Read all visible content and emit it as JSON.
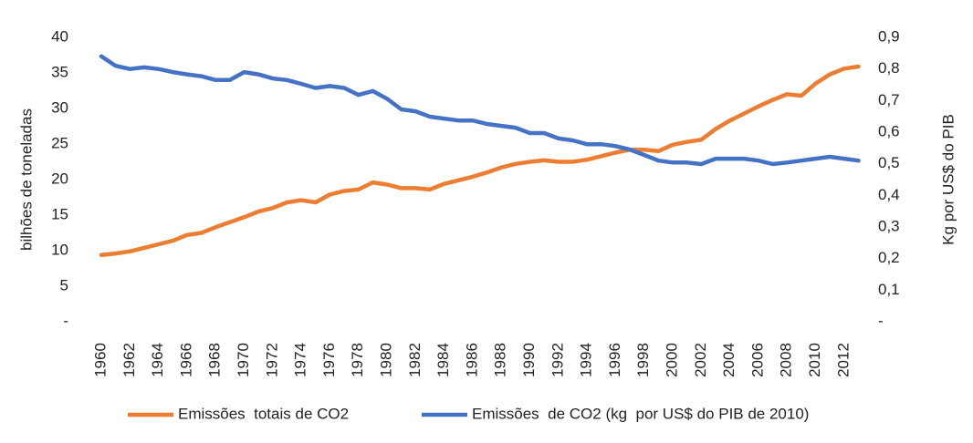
{
  "chart_data": {
    "type": "line",
    "ylabel": "bilhões de toneladas",
    "y2label": "Kg por US$ do PIB",
    "categories": [
      "1960",
      null,
      "1962",
      null,
      "1964",
      null,
      "1966",
      null,
      "1968",
      null,
      "1970",
      null,
      "1972",
      null,
      "1974",
      null,
      "1976",
      null,
      "1978",
      null,
      "1980",
      null,
      "1982",
      null,
      "1984",
      null,
      "1986",
      null,
      "1988",
      null,
      "1990",
      null,
      "1992",
      null,
      "1994",
      null,
      "1996",
      null,
      "1998",
      null,
      "2000",
      null,
      "2002",
      null,
      "2004",
      null,
      "2006",
      null,
      "2008",
      null,
      "2010",
      null,
      "2012",
      null
    ],
    "series": [
      {
        "name": "Emissões  totais de CO2",
        "color": "#ed7d31",
        "axis": "y",
        "values": [
          9.4,
          9.6,
          9.9,
          10.4,
          10.9,
          11.4,
          12.2,
          12.5,
          13.3,
          14.0,
          14.7,
          15.5,
          16.0,
          16.8,
          17.1,
          16.8,
          17.9,
          18.4,
          18.6,
          19.6,
          19.3,
          18.8,
          18.8,
          18.6,
          19.4,
          19.9,
          20.4,
          21.0,
          21.7,
          22.2,
          22.5,
          22.7,
          22.5,
          22.5,
          22.8,
          23.3,
          23.8,
          24.2,
          24.2,
          24.0,
          24.9,
          25.3,
          25.6,
          27.1,
          28.3,
          29.3,
          30.3,
          31.2,
          32.0,
          31.8,
          33.5,
          34.8,
          35.6,
          35.9
        ]
      },
      {
        "name": "Emissões  de CO2 (kg  por US$ do PIB de 2010)",
        "color": "#4472c4",
        "axis": "y2",
        "values": [
          0.84,
          0.81,
          0.8,
          0.805,
          0.8,
          0.79,
          0.783,
          0.777,
          0.765,
          0.765,
          0.79,
          0.783,
          0.77,
          0.765,
          0.753,
          0.74,
          0.746,
          0.74,
          0.718,
          0.73,
          0.706,
          0.672,
          0.666,
          0.649,
          0.643,
          0.637,
          0.637,
          0.626,
          0.62,
          0.614,
          0.597,
          0.597,
          0.58,
          0.574,
          0.562,
          0.562,
          0.556,
          0.545,
          0.528,
          0.51,
          0.504,
          0.504,
          0.499,
          0.516,
          0.516,
          0.516,
          0.51,
          0.499,
          0.504,
          0.51,
          0.516,
          0.522,
          0.516,
          0.51
        ]
      }
    ],
    "ylim": [
      0,
      40
    ],
    "yticks": [
      {
        "value": 0,
        "label": "-"
      },
      5,
      10,
      15,
      20,
      25,
      30,
      35,
      40
    ],
    "y2lim": [
      0,
      0.9
    ],
    "y2ticks": [
      {
        "value": 0,
        "label": "-"
      },
      {
        "value": 0.1,
        "label": "0,1"
      },
      {
        "value": 0.2,
        "label": "0,2"
      },
      {
        "value": 0.3,
        "label": "0,3"
      },
      {
        "value": 0.4,
        "label": "0,4"
      },
      {
        "value": 0.5,
        "label": "0,5"
      },
      {
        "value": 0.6,
        "label": "0,6"
      },
      {
        "value": 0.7,
        "label": "0,7"
      },
      {
        "value": 0.8,
        "label": "0,8"
      },
      {
        "value": 0.9,
        "label": "0,9"
      }
    ],
    "legend": "bottom",
    "grid": false
  }
}
